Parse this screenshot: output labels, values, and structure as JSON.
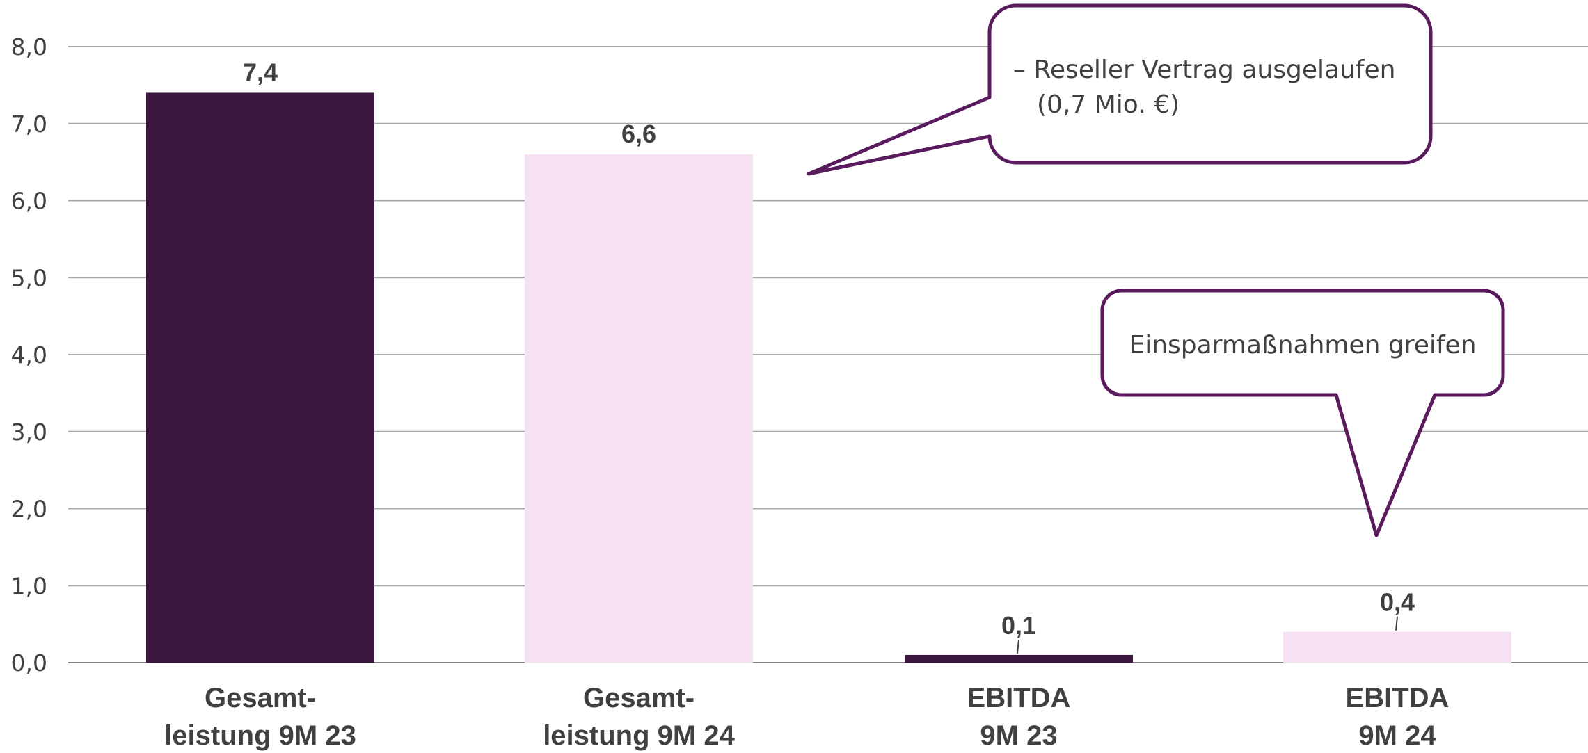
{
  "chart_data": {
    "type": "bar",
    "categories": [
      [
        "Gesamt-",
        "leistung 9M 23"
      ],
      [
        "Gesamt-",
        "leistung 9M 24"
      ],
      [
        "EBITDA",
        "9M 23"
      ],
      [
        "EBITDA",
        "9M 24"
      ]
    ],
    "values": [
      7.4,
      6.6,
      0.1,
      0.4
    ],
    "data_labels": [
      "7,4",
      "6,6",
      "0,1",
      "0,4"
    ],
    "bar_colors": [
      "#3b1740",
      "#f5e1f1",
      "#3b1740",
      "#f5e1f1"
    ],
    "ylim": [
      0,
      8
    ],
    "yticks": [
      0,
      1,
      2,
      3,
      4,
      5,
      6,
      7,
      8
    ],
    "ytick_labels": [
      "0,0",
      "1,0",
      "2,0",
      "3,0",
      "4,0",
      "5,0",
      "6,0",
      "7,0",
      "8,0"
    ],
    "grid": true,
    "title": "",
    "xlabel": "",
    "ylabel": "",
    "annotations": [
      {
        "lines": [
          "– Reseller Vertrag ausgelaufen",
          "(0,7 Mio. €)"
        ],
        "target_category": 1
      },
      {
        "lines": [
          "Einsparmaßnahmen greifen"
        ],
        "target_category": 3
      }
    ],
    "colors": {
      "callout_border": "#5a1a5e",
      "grid": "#a6a6a6",
      "axis_text": "#404040"
    }
  }
}
